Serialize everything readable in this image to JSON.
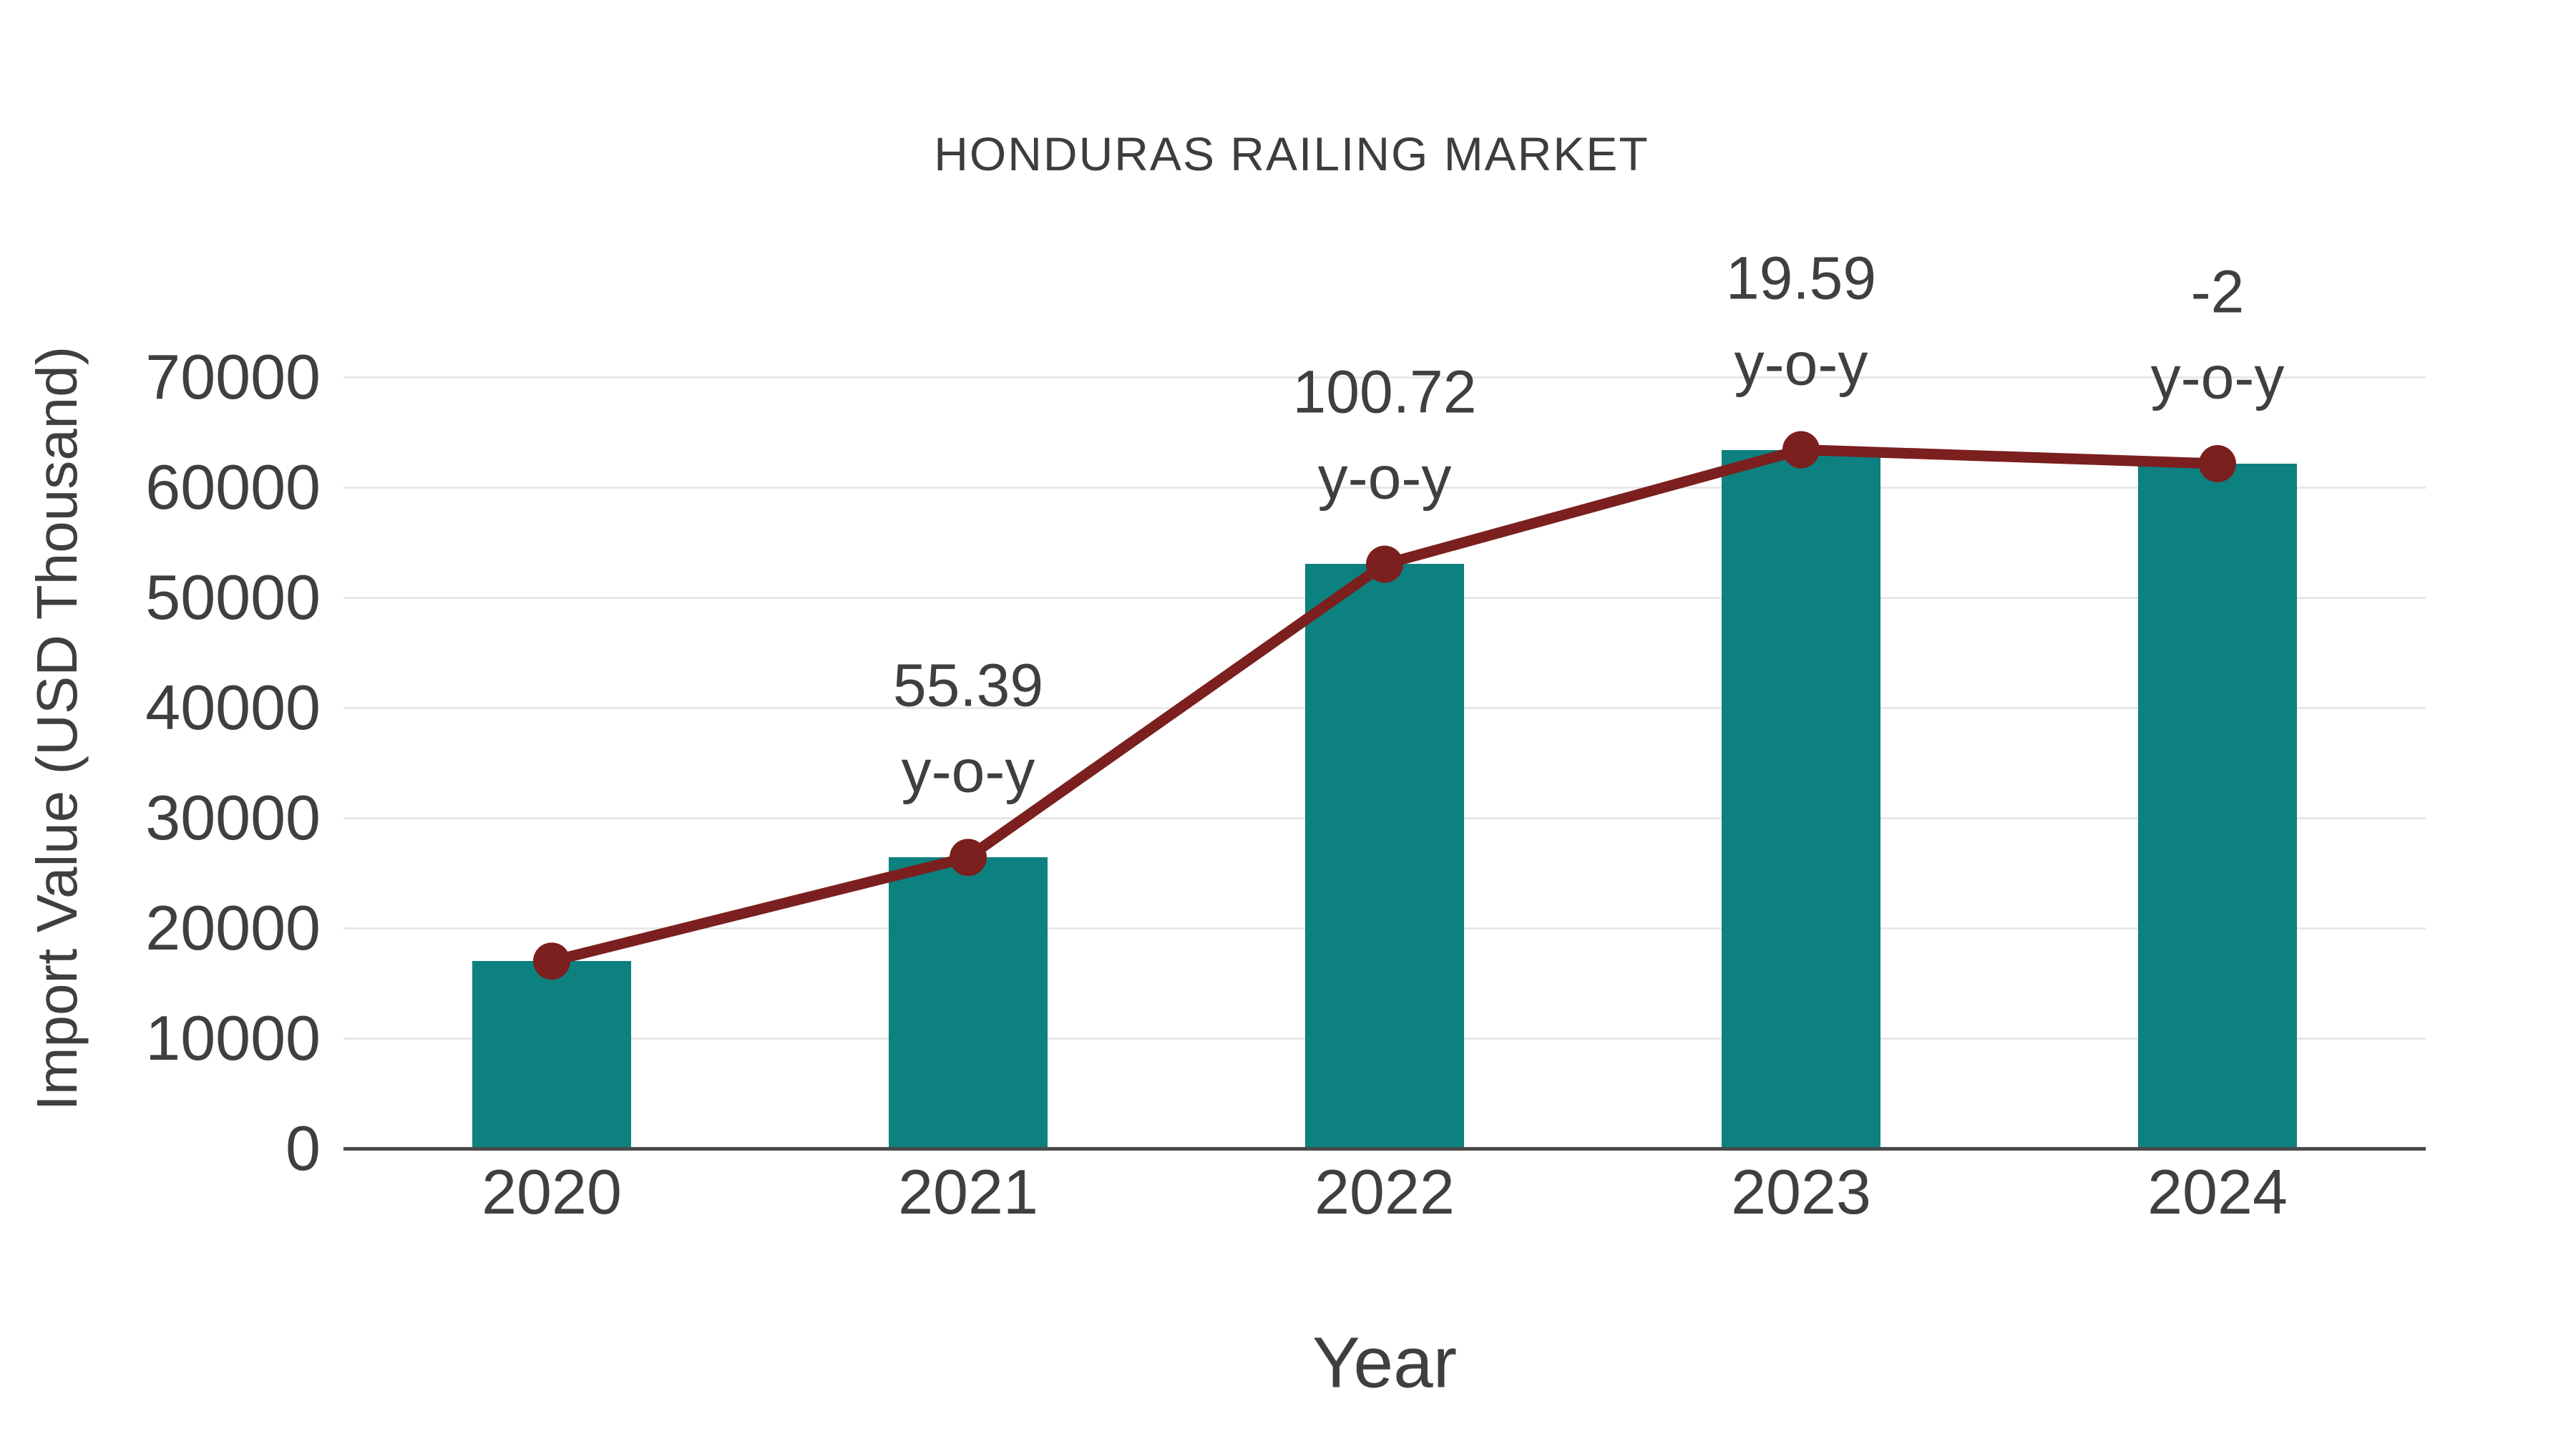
{
  "title": "HONDURAS RAILING MARKET",
  "colors": {
    "bar": "#0d8180",
    "line": "#7b1f1f",
    "marker": "#7b1f1f",
    "text": "#3f3f3f",
    "gridline": "#e7e7e7",
    "axis_line": "#4a4a4a",
    "background": "#ffffff"
  },
  "chart_data": {
    "type": "bar",
    "title": "HONDURAS RAILING MARKET",
    "xlabel": "Year",
    "ylabel": "Import Value (USD Thousand)",
    "categories": [
      "2020",
      "2021",
      "2022",
      "2023",
      "2024"
    ],
    "series": [
      {
        "name": "Import Value (bars)",
        "type": "bar",
        "values": [
          17000,
          26416,
          53022,
          63409,
          62141
        ],
        "color": "#0d8180"
      },
      {
        "name": "Import Value trend (line with markers)",
        "type": "line",
        "values": [
          17000,
          26416,
          53022,
          63409,
          62141
        ],
        "color": "#7b1f1f"
      }
    ],
    "yoy_percent_by_year": {
      "2021": 55.39,
      "2022": 100.72,
      "2023": 19.59,
      "2024": -2
    },
    "annotations": [
      {
        "category": "2021",
        "line1": "55.39",
        "line2": "y-o-y"
      },
      {
        "category": "2022",
        "line1": "100.72",
        "line2": "y-o-y"
      },
      {
        "category": "2023",
        "line1": "19.59",
        "line2": "y-o-y"
      },
      {
        "category": "2024",
        "line1": "-2",
        "line2": "y-o-y"
      }
    ],
    "yticks": [
      0,
      10000,
      20000,
      30000,
      40000,
      50000,
      60000,
      70000
    ],
    "ytick_labels": [
      "0",
      "10000",
      "20000",
      "30000",
      "40000",
      "50000",
      "60000",
      "70000"
    ],
    "ylim": [
      0,
      75000
    ],
    "grid": true,
    "legend_position": "none"
  }
}
